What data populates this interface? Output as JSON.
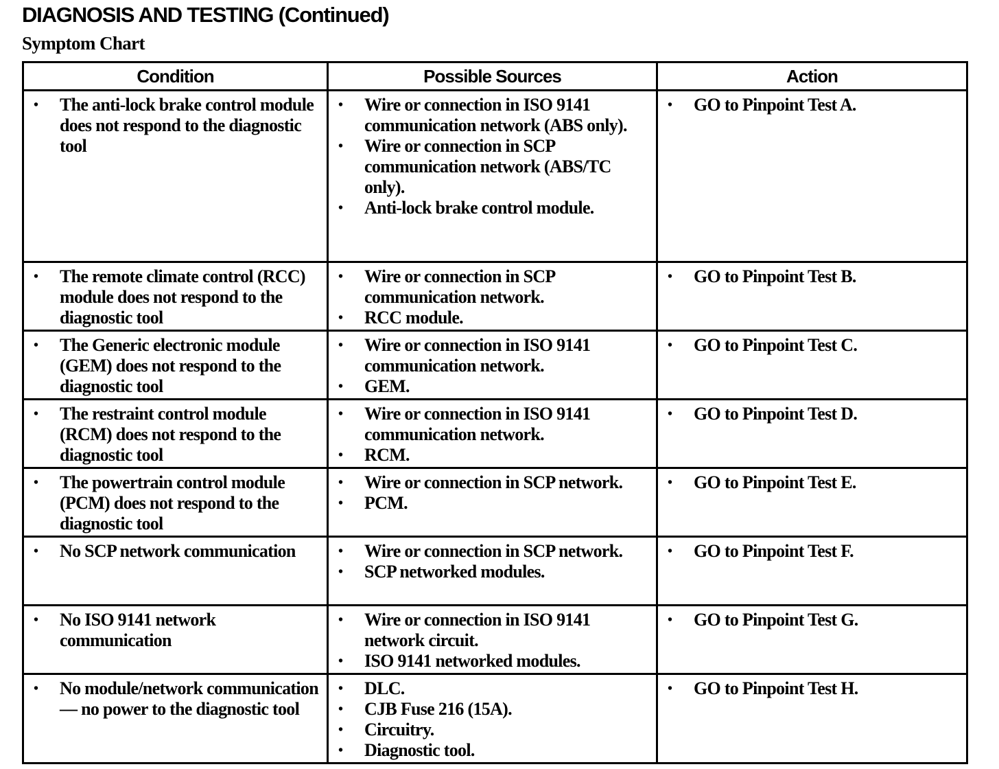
{
  "header": {
    "title": "DIAGNOSIS AND TESTING (Continued)",
    "subtitle": "Symptom Chart"
  },
  "table": {
    "columns": [
      "Condition",
      "Possible Sources",
      "Action"
    ],
    "rows": [
      {
        "condition": "The anti-lock brake control module does not respond to the diagnostic tool",
        "sources": [
          "Wire or connection in ISO 9141 communication network (ABS only).",
          "Wire or connection in SCP communication network (ABS/TC only).",
          "Anti-lock brake control module."
        ],
        "action": "GO to Pinpoint Test A."
      },
      {
        "condition": "The remote climate control (RCC) module does not respond to the diagnostic tool",
        "sources": [
          "Wire or connection in SCP communication network.",
          "RCC module."
        ],
        "action": "GO to Pinpoint Test B."
      },
      {
        "condition": "The Generic electronic module (GEM) does not respond to the diagnostic tool",
        "sources": [
          "Wire or connection in ISO 9141 communication network.",
          "GEM."
        ],
        "action": "GO to Pinpoint Test C."
      },
      {
        "condition": "The restraint control module (RCM) does not respond to the diagnostic tool",
        "sources": [
          "Wire or connection in ISO 9141 communication network.",
          "RCM."
        ],
        "action": "GO to Pinpoint Test D."
      },
      {
        "condition": "The powertrain control module (PCM) does not respond to the diagnostic tool",
        "sources": [
          "Wire or connection in SCP network.",
          "PCM."
        ],
        "action": "GO to Pinpoint Test E."
      },
      {
        "condition": "No SCP network communication",
        "sources": [
          "Wire or connection in SCP network.",
          "SCP networked modules."
        ],
        "action": "GO to Pinpoint Test F."
      },
      {
        "condition": "No ISO 9141 network communication",
        "sources": [
          "Wire or connection in ISO 9141 network circuit.",
          "ISO 9141 networked modules."
        ],
        "action": "GO to Pinpoint Test G."
      },
      {
        "condition": "No module/network communication — no power to the diagnostic tool",
        "sources": [
          "DLC.",
          "CJB Fuse 216 (15A).",
          "Circuitry.",
          "Diagnostic tool."
        ],
        "action": "GO to Pinpoint Test H."
      }
    ]
  }
}
